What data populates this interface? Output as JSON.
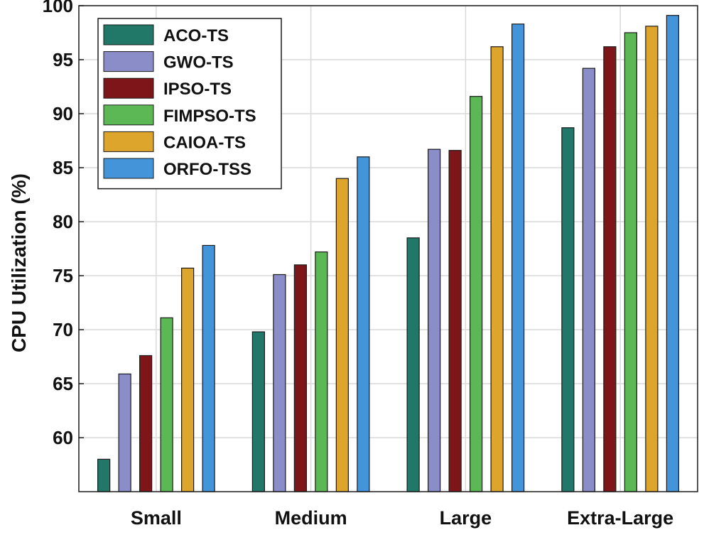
{
  "chart_data": {
    "type": "bar",
    "title": "",
    "xlabel": "",
    "ylabel": "CPU Utilization (%)",
    "ylim": [
      55,
      100
    ],
    "yticks": [
      60,
      65,
      70,
      75,
      80,
      85,
      90,
      95,
      100
    ],
    "grid": true,
    "legend_position": "top-left",
    "categories": [
      "Small",
      "Medium",
      "Large",
      "Extra-Large"
    ],
    "series": [
      {
        "name": "ACO-TS",
        "color": "#217868",
        "values": [
          58.0,
          69.8,
          78.5,
          88.7
        ]
      },
      {
        "name": "GWO-TS",
        "color": "#8b8dc8",
        "values": [
          65.9,
          75.1,
          86.7,
          94.2
        ]
      },
      {
        "name": "IPSO-TS",
        "color": "#7e1518",
        "values": [
          67.6,
          76.0,
          86.6,
          96.2
        ]
      },
      {
        "name": "FIMPSO-TS",
        "color": "#5bb854",
        "values": [
          71.1,
          77.2,
          91.6,
          97.5
        ]
      },
      {
        "name": "CAIOA-TS",
        "color": "#dea52c",
        "values": [
          75.7,
          84.0,
          96.2,
          98.1
        ]
      },
      {
        "name": "ORFO-TSS",
        "color": "#4394d9",
        "values": [
          77.8,
          86.0,
          98.3,
          99.1
        ]
      }
    ]
  }
}
